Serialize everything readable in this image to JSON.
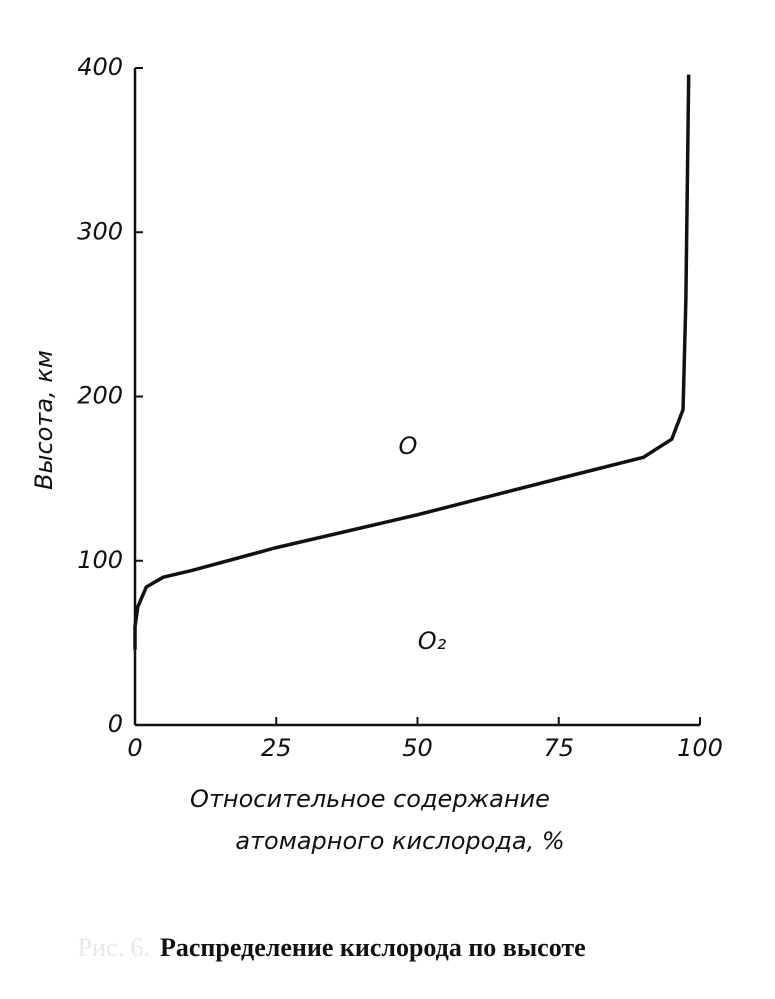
{
  "chart_data": {
    "type": "line",
    "ylabel": "Высота, км",
    "xlabel": [
      "Относительное содержание",
      "атомарного кислорода, %"
    ],
    "figure_label": "Рис. 6.",
    "title": "Распределение кислорода по высоте",
    "annotations": [
      "O",
      "O₂"
    ],
    "x": [
      0,
      0,
      0.5,
      2,
      5,
      10,
      25,
      50,
      75,
      90,
      95,
      97,
      97.5,
      98
    ],
    "values": [
      46,
      60,
      72,
      84,
      90,
      94,
      108,
      128,
      150,
      163,
      174,
      192,
      259,
      396
    ],
    "color": "#111111",
    "xlim": [
      0,
      100
    ],
    "xticks": [
      0,
      25,
      50,
      75,
      100
    ],
    "ylim": [
      0,
      400
    ],
    "yticks": [
      0,
      100,
      200,
      300,
      400
    ],
    "grid": false
  }
}
